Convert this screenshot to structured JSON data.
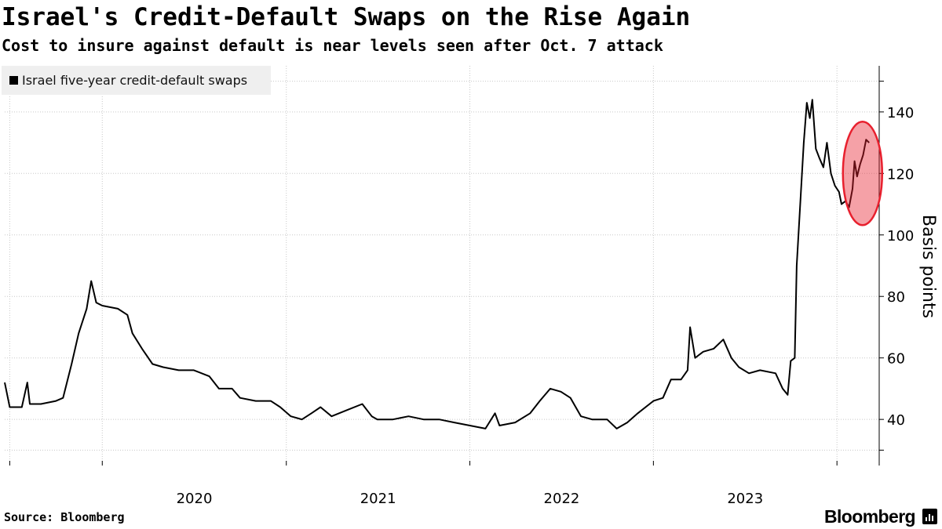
{
  "chart_data": {
    "type": "line",
    "title": "Israel's Credit-Default Swaps on the Rise Again",
    "subtitle": "Cost to insure against default is near levels seen after Oct. 7 attack",
    "ylabel": "Basis points",
    "xlabel": "",
    "ylim": [
      25,
      155
    ],
    "y_ticks": [
      40,
      60,
      80,
      100,
      120,
      140
    ],
    "x_tick_labels": [
      "2020",
      "2021",
      "2022",
      "2023"
    ],
    "grid": "dotted",
    "legend_position": "top-left",
    "line_color": "#000000",
    "highlight_color": "#e8202e",
    "series": [
      {
        "name": "Israel five-year credit-default swaps",
        "points": [
          [
            "2019-06-21",
            52
          ],
          [
            "2019-07-01",
            44
          ],
          [
            "2019-07-25",
            44
          ],
          [
            "2019-08-05",
            52
          ],
          [
            "2019-08-10",
            45
          ],
          [
            "2019-09-01",
            45
          ],
          [
            "2019-10-01",
            46
          ],
          [
            "2019-10-15",
            47
          ],
          [
            "2019-11-01",
            58
          ],
          [
            "2019-11-15",
            68
          ],
          [
            "2019-12-01",
            76
          ],
          [
            "2019-12-10",
            85
          ],
          [
            "2019-12-20",
            78
          ],
          [
            "2020-01-01",
            77
          ],
          [
            "2020-02-01",
            76
          ],
          [
            "2020-02-20",
            74
          ],
          [
            "2020-03-01",
            68
          ],
          [
            "2020-03-20",
            63
          ],
          [
            "2020-04-10",
            58
          ],
          [
            "2020-05-01",
            57
          ],
          [
            "2020-06-01",
            56
          ],
          [
            "2020-07-01",
            56
          ],
          [
            "2020-08-01",
            54
          ],
          [
            "2020-08-20",
            50
          ],
          [
            "2020-09-15",
            50
          ],
          [
            "2020-10-01",
            47
          ],
          [
            "2020-11-01",
            46
          ],
          [
            "2020-12-01",
            46
          ],
          [
            "2020-12-20",
            44
          ],
          [
            "2021-01-10",
            41
          ],
          [
            "2021-02-01",
            40
          ],
          [
            "2021-02-20",
            42
          ],
          [
            "2021-03-10",
            44
          ],
          [
            "2021-04-01",
            41
          ],
          [
            "2021-05-01",
            43
          ],
          [
            "2021-06-01",
            45
          ],
          [
            "2021-06-20",
            41
          ],
          [
            "2021-07-01",
            40
          ],
          [
            "2021-08-01",
            40
          ],
          [
            "2021-09-01",
            41
          ],
          [
            "2021-10-01",
            40
          ],
          [
            "2021-11-01",
            40
          ],
          [
            "2021-12-01",
            39
          ],
          [
            "2022-01-01",
            38
          ],
          [
            "2022-02-01",
            37
          ],
          [
            "2022-02-20",
            42
          ],
          [
            "2022-03-01",
            38
          ],
          [
            "2022-04-01",
            39
          ],
          [
            "2022-05-01",
            42
          ],
          [
            "2022-05-20",
            46
          ],
          [
            "2022-06-10",
            50
          ],
          [
            "2022-07-01",
            49
          ],
          [
            "2022-07-20",
            47
          ],
          [
            "2022-08-10",
            41
          ],
          [
            "2022-09-01",
            40
          ],
          [
            "2022-10-01",
            40
          ],
          [
            "2022-10-20",
            37
          ],
          [
            "2022-11-10",
            39
          ],
          [
            "2022-12-01",
            42
          ],
          [
            "2023-01-01",
            46
          ],
          [
            "2023-01-20",
            47
          ],
          [
            "2023-02-05",
            53
          ],
          [
            "2023-02-25",
            53
          ],
          [
            "2023-03-10",
            56
          ],
          [
            "2023-03-15",
            70
          ],
          [
            "2023-03-25",
            60
          ],
          [
            "2023-04-10",
            62
          ],
          [
            "2023-05-01",
            63
          ],
          [
            "2023-05-20",
            66
          ],
          [
            "2023-06-05",
            60
          ],
          [
            "2023-06-20",
            57
          ],
          [
            "2023-07-10",
            55
          ],
          [
            "2023-08-01",
            56
          ],
          [
            "2023-09-01",
            55
          ],
          [
            "2023-09-15",
            50
          ],
          [
            "2023-09-25",
            48
          ],
          [
            "2023-10-01",
            59
          ],
          [
            "2023-10-09",
            60
          ],
          [
            "2023-10-13",
            90
          ],
          [
            "2023-10-20",
            110
          ],
          [
            "2023-10-27",
            130
          ],
          [
            "2023-11-02",
            143
          ],
          [
            "2023-11-08",
            138
          ],
          [
            "2023-11-13",
            144
          ],
          [
            "2023-11-20",
            128
          ],
          [
            "2023-11-27",
            125
          ],
          [
            "2023-12-05",
            122
          ],
          [
            "2023-12-12",
            130
          ],
          [
            "2023-12-20",
            120
          ],
          [
            "2023-12-28",
            116
          ],
          [
            "2024-01-05",
            114
          ],
          [
            "2024-01-10",
            110
          ],
          [
            "2024-01-18",
            111
          ],
          [
            "2024-01-25",
            109
          ],
          [
            "2024-02-01",
            115
          ],
          [
            "2024-02-05",
            124
          ],
          [
            "2024-02-10",
            119
          ],
          [
            "2024-02-16",
            123
          ],
          [
            "2024-02-22",
            126
          ],
          [
            "2024-02-28",
            131
          ],
          [
            "2024-03-05",
            130
          ]
        ]
      }
    ]
  },
  "footer": {
    "source": "Source: Bloomberg",
    "brand": "Bloomberg"
  }
}
